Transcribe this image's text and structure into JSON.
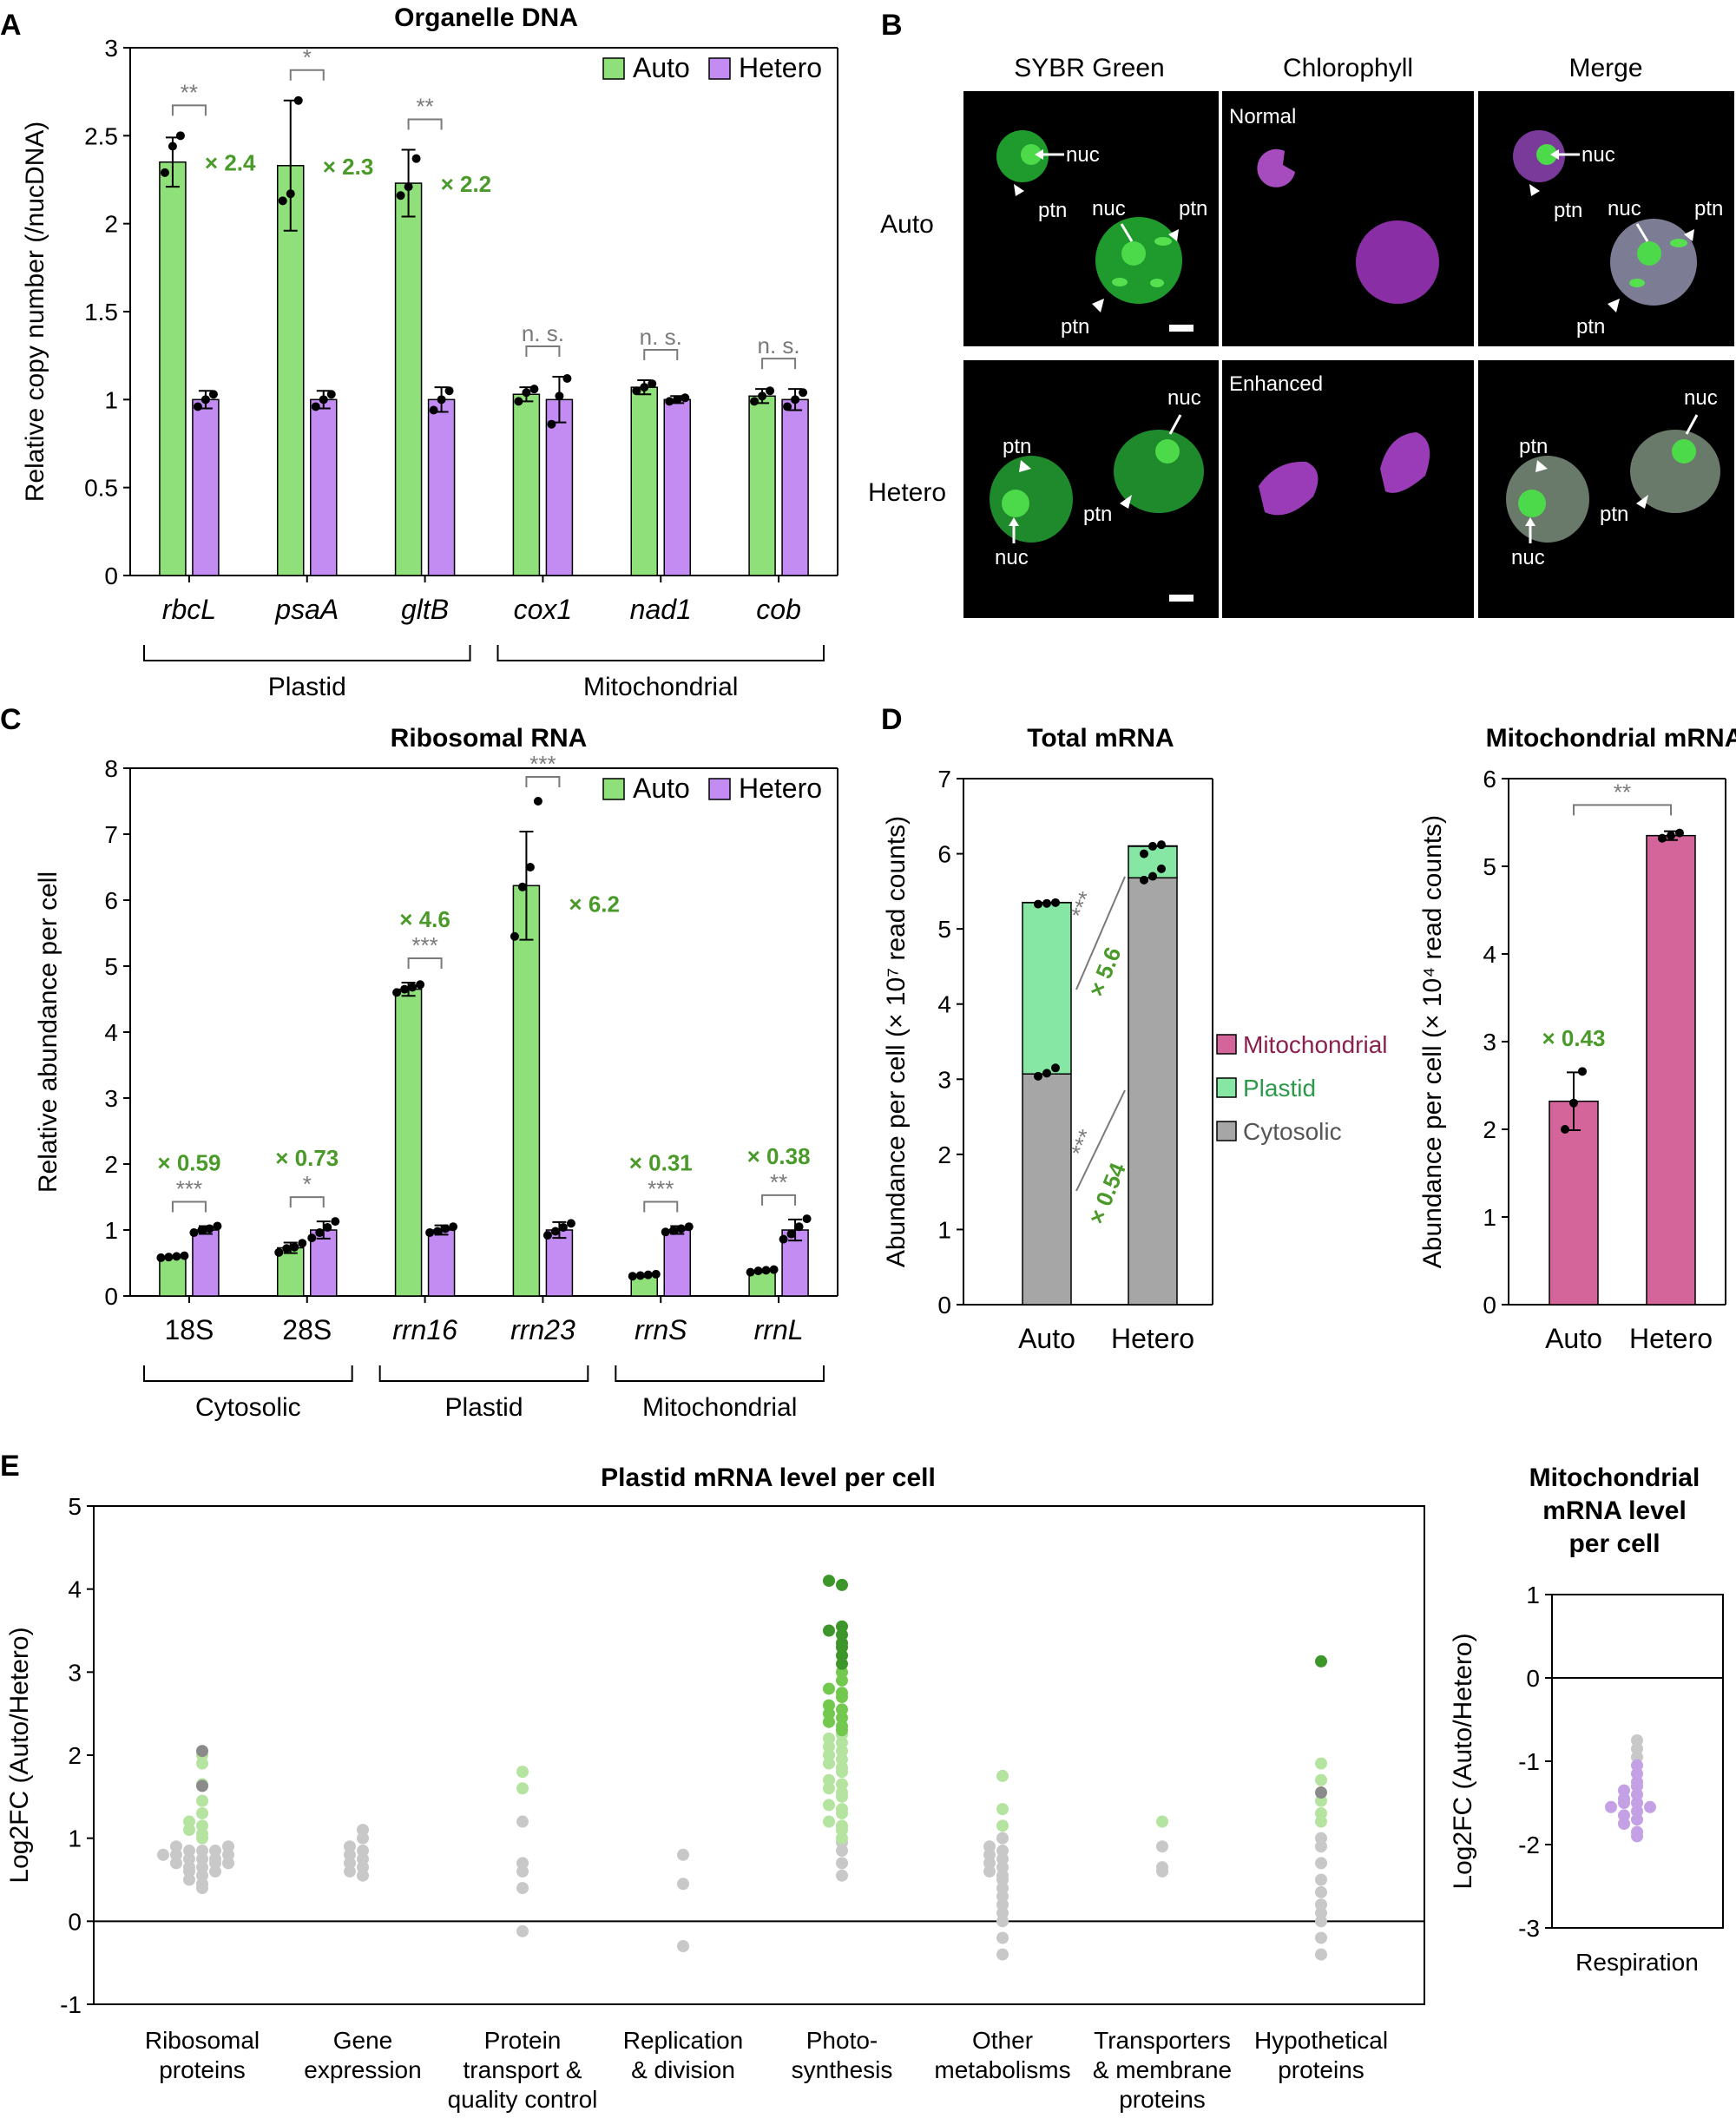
{
  "colors": {
    "auto": "#8fe07a",
    "hetero": "#c28cf2",
    "green_text": "#4a9a2a",
    "mito": "#d4659a",
    "plastid": "#86e6a4",
    "cyto": "#a6a6a6",
    "sig": "#7a7a7a",
    "e_light": "#b4e4a0",
    "e_mid": "#72c94e",
    "e_dark": "#3d962a",
    "e_gray": "#c8c8c8",
    "e_purple": "#c4a0e4"
  },
  "panel_letters": {
    "a": "A",
    "b": "B",
    "c": "C",
    "d": "D",
    "e": "E"
  },
  "chart_data": [
    {
      "id": "A",
      "type": "bar",
      "title": "Organelle DNA",
      "ylabel": "Relative copy number (/nucDNA)",
      "ylim": [
        0,
        3
      ],
      "yticks": [
        "0",
        "0.5",
        "1",
        "1.5",
        "2",
        "2.5",
        "3"
      ],
      "categories": [
        "rbcL",
        "psaA",
        "gltB",
        "cox1",
        "nad1",
        "cob"
      ],
      "groups": [
        {
          "label": "Plastid"
        },
        {
          "label": "Mitochondrial"
        }
      ],
      "series": [
        {
          "name": "Auto",
          "values": [
            2.35,
            2.33,
            2.23,
            1.03,
            1.07,
            1.02
          ],
          "errors": [
            0.14,
            0.37,
            0.19,
            0.04,
            0.04,
            0.04
          ]
        },
        {
          "name": "Hetero",
          "values": [
            1.0,
            1.0,
            1.0,
            1.0,
            1.0,
            1.0
          ],
          "errors": [
            0.05,
            0.05,
            0.07,
            0.13,
            0.02,
            0.06
          ]
        }
      ],
      "points": {
        "auto": [
          [
            2.29,
            2.44,
            2.5
          ],
          [
            2.13,
            2.17,
            2.7
          ],
          [
            2.16,
            2.21,
            2.37
          ],
          [
            0.99,
            1.04,
            1.06
          ],
          [
            1.05,
            1.07,
            1.09
          ],
          [
            0.99,
            1.02,
            1.05
          ]
        ],
        "hetero": [
          [
            0.96,
            1.0,
            1.03
          ],
          [
            0.96,
            1.0,
            1.03
          ],
          [
            0.94,
            1.0,
            1.05
          ],
          [
            0.86,
            1.02,
            1.12
          ],
          [
            0.99,
            1.0,
            1.01
          ],
          [
            0.96,
            1.0,
            1.04
          ]
        ]
      },
      "significance": [
        "**",
        "*",
        "**",
        "n. s.",
        "n. s.",
        "n. s."
      ],
      "fold_changes": [
        "× 2.4",
        "× 2.3",
        "× 2.2"
      ],
      "legend": [
        "Auto",
        "Hetero"
      ]
    },
    {
      "id": "C",
      "type": "bar",
      "title": "Ribosomal RNA",
      "ylabel": "Relative abundance per cell",
      "ylim": [
        0,
        8
      ],
      "yticks": [
        "0",
        "1",
        "2",
        "3",
        "4",
        "5",
        "6",
        "7",
        "8"
      ],
      "categories": [
        "18S",
        "28S",
        "rrn16",
        "rrn23",
        "rrnS",
        "rrnL"
      ],
      "groups": [
        {
          "label": "Cytosolic"
        },
        {
          "label": "Plastid"
        },
        {
          "label": "Mitochondrial"
        }
      ],
      "series": [
        {
          "name": "Auto",
          "values": [
            0.59,
            0.73,
            4.65,
            6.22,
            0.31,
            0.38
          ],
          "errors": [
            0.01,
            0.08,
            0.1,
            0.82,
            0.02,
            0.02
          ]
        },
        {
          "name": "Hetero",
          "values": [
            1.0,
            1.0,
            1.0,
            1.0,
            1.0,
            1.0
          ],
          "errors": [
            0.06,
            0.13,
            0.07,
            0.12,
            0.06,
            0.16
          ]
        }
      ],
      "points": {
        "auto": [
          [
            0.58,
            0.59,
            0.6,
            0.61
          ],
          [
            0.66,
            0.72,
            0.74,
            0.8
          ],
          [
            4.6,
            4.65,
            4.68,
            4.72
          ],
          [
            5.45,
            6.2,
            6.5,
            7.5
          ],
          [
            0.3,
            0.31,
            0.32,
            0.33
          ],
          [
            0.36,
            0.38,
            0.39,
            0.4
          ]
        ],
        "hetero": [
          [
            0.96,
            1.0,
            1.02,
            1.06
          ],
          [
            0.88,
            0.96,
            1.04,
            1.13
          ],
          [
            0.96,
            0.98,
            1.02,
            1.05
          ],
          [
            0.92,
            0.98,
            1.04,
            1.1
          ],
          [
            0.97,
            0.99,
            1.02,
            1.05
          ],
          [
            0.86,
            0.94,
            1.05,
            1.17
          ]
        ]
      },
      "significance": [
        "***",
        "*",
        "***",
        "***",
        "***",
        "**"
      ],
      "fold_changes": [
        "× 0.59",
        "× 0.73",
        "× 4.6",
        "× 6.2",
        "× 0.31",
        "× 0.38"
      ],
      "legend": [
        "Auto",
        "Hetero"
      ]
    },
    {
      "id": "D1",
      "type": "bar",
      "title": "Total mRNA",
      "ylabel": "Abundance per cell (× 10⁷ read counts)",
      "ylim": [
        0,
        7
      ],
      "yticks": [
        "0",
        "1",
        "2",
        "3",
        "4",
        "5",
        "6",
        "7"
      ],
      "categories": [
        "Auto",
        "Hetero"
      ],
      "series": [
        {
          "name": "Cytosolic",
          "values": [
            3.07,
            5.68
          ]
        },
        {
          "name": "Plastid",
          "values": [
            2.28,
            0.42
          ]
        },
        {
          "name": "Mitochondrial",
          "values": [
            0.002,
            0.005
          ]
        }
      ],
      "total_points": [
        [
          5.33,
          5.34,
          5.35
        ],
        [
          6.0,
          6.1,
          6.12
        ]
      ],
      "cyto_points": [
        [
          3.04,
          3.08,
          3.15
        ],
        [
          5.65,
          5.7,
          5.8
        ]
      ],
      "annotations": [
        {
          "sig": "***",
          "fc": "× 5.6"
        },
        {
          "sig": "***",
          "fc": "× 0.54"
        }
      ],
      "legend": [
        "Mitochondrial",
        "Plastid",
        "Cytosolic"
      ]
    },
    {
      "id": "D2",
      "type": "bar",
      "title": "Mitochondrial mRNA",
      "ylabel": "Abundance per cell (× 10⁴ read counts)",
      "ylim": [
        0,
        6
      ],
      "yticks": [
        "0",
        "1",
        "2",
        "3",
        "4",
        "5",
        "6"
      ],
      "categories": [
        "Auto",
        "Hetero"
      ],
      "values": [
        2.32,
        5.35
      ],
      "errors": [
        0.33,
        0.05
      ],
      "points": [
        [
          2.0,
          2.3,
          2.66
        ],
        [
          5.32,
          5.35,
          5.38
        ]
      ],
      "significance": "**",
      "fold_change": "× 0.43"
    },
    {
      "id": "E1",
      "type": "scatter",
      "title": "Plastid mRNA level per cell",
      "ylabel": "Log2FC (Auto/Hetero)",
      "ylim": [
        -1,
        5
      ],
      "yticks": [
        "-1",
        "0",
        "1",
        "2",
        "3",
        "4",
        "5"
      ],
      "categories": [
        "Ribosomal proteins",
        "Gene expression",
        "Protein transport & quality control",
        "Replication & division",
        "Photo-synthesis",
        "Other metabolisms",
        "Transporters & membrane proteins",
        "Hypothetical proteins"
      ],
      "category_lines": [
        [
          "Ribosomal",
          "proteins"
        ],
        [
          "Gene",
          "expression"
        ],
        [
          "Protein",
          "transport &",
          "quality control"
        ],
        [
          "Replication",
          "& division"
        ],
        [
          "Photo-",
          "synthesis"
        ],
        [
          "Other",
          "metabolisms"
        ],
        [
          "Transporters",
          "& membrane",
          "proteins"
        ],
        [
          "Hypothetical",
          "proteins"
        ]
      ],
      "points": [
        {
          "gray": [
            0.4,
            0.45,
            0.5,
            0.55,
            0.6,
            0.6,
            0.65,
            0.65,
            0.7,
            0.7,
            0.7,
            0.75,
            0.75,
            0.75,
            0.8,
            0.8,
            0.8,
            0.85,
            0.85,
            0.85,
            0.9,
            0.9
          ],
          "light": [
            1.0,
            1.05,
            1.1,
            1.15,
            1.2,
            1.3,
            1.45,
            1.65,
            1.9,
            2.0
          ],
          "dark": [
            1.63,
            2.05
          ]
        },
        {
          "gray": [
            0.55,
            0.6,
            0.65,
            0.7,
            0.75,
            0.8,
            0.85,
            0.9,
            1.0,
            1.1
          ],
          "light": [],
          "dark": []
        },
        {
          "gray": [
            -0.12,
            0.4,
            0.6,
            0.7,
            1.2
          ],
          "light": [
            1.6,
            1.8
          ],
          "dark": []
        },
        {
          "gray": [
            -0.3,
            0.45,
            0.8
          ],
          "light": [],
          "dark": []
        },
        {
          "gray": [
            0.55,
            0.7,
            0.85,
            0.95
          ],
          "light": [
            1.0,
            1.1,
            1.15,
            1.2,
            1.3,
            1.35,
            1.4,
            1.5,
            1.55,
            1.6,
            1.65,
            1.7,
            1.8,
            1.85,
            1.9,
            1.95,
            2.0,
            2.05,
            2.1,
            2.15,
            2.2,
            2.25
          ],
          "mid": [
            2.3,
            2.35,
            2.4,
            2.45,
            2.5,
            2.55,
            2.6,
            2.7,
            2.75,
            2.8,
            2.9,
            3.0
          ],
          "dark": [
            3.1,
            3.2,
            3.3,
            3.35,
            3.45,
            3.5,
            3.55,
            4.05,
            4.1
          ]
        },
        {
          "gray": [
            -0.4,
            -0.2,
            0.0,
            0.1,
            0.2,
            0.3,
            0.4,
            0.5,
            0.55,
            0.6,
            0.65,
            0.7,
            0.75,
            0.8,
            0.85,
            0.9,
            1.0
          ],
          "light": [
            1.15,
            1.35,
            1.75
          ],
          "dark": []
        },
        {
          "gray": [
            0.6,
            0.65,
            0.9
          ],
          "light": [
            1.2
          ],
          "dark": []
        },
        {
          "gray": [
            -0.4,
            -0.2,
            0.0,
            0.1,
            0.2,
            0.35,
            0.5,
            0.7,
            0.9,
            1.0
          ],
          "light": [
            1.2,
            1.3,
            1.45,
            1.7,
            1.9
          ],
          "dark": [
            3.13
          ],
          "darkgray": [
            1.55
          ]
        }
      ]
    },
    {
      "id": "E2",
      "type": "scatter",
      "title": "Mitochondrial mRNA level per cell",
      "title_lines": [
        "Mitochondrial",
        "mRNA level",
        "per cell"
      ],
      "ylabel": "Log2FC (Auto/Hetero)",
      "ylim": [
        -3,
        1
      ],
      "yticks": [
        "-3",
        "-2",
        "-1",
        "0",
        "1"
      ],
      "categories": [
        "Respiration"
      ],
      "points": {
        "gray": [
          -0.75,
          -0.85,
          -0.95
        ],
        "purple": [
          -1.05,
          -1.15,
          -1.25,
          -1.3,
          -1.35,
          -1.4,
          -1.45,
          -1.5,
          -1.5,
          -1.55,
          -1.55,
          -1.6,
          -1.65,
          -1.7,
          -1.75,
          -1.85,
          -1.9
        ]
      }
    }
  ],
  "panel_b": {
    "columns": [
      "SYBR Green",
      "Chlorophyll",
      "Merge"
    ],
    "rows": [
      "Auto",
      "Hetero"
    ],
    "chlorophyll_notes": [
      "Normal",
      "Enhanced"
    ],
    "labels": {
      "nuc": "nuc",
      "ptn": "ptn"
    }
  }
}
